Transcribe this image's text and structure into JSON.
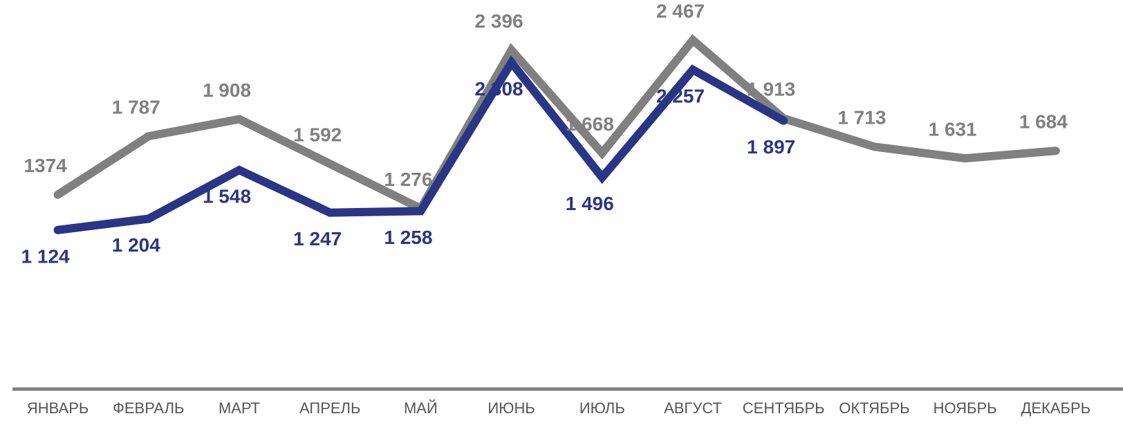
{
  "chart_data": {
    "type": "line",
    "categories": [
      "ЯНВАРЬ",
      "ФЕВРАЛЬ",
      "МАРТ",
      "АПРЕЛЬ",
      "МАЙ",
      "ИЮНЬ",
      "ИЮЛЬ",
      "АВГУСТ",
      "СЕНТЯБРЬ",
      "ОКТЯБРЬ",
      "НОЯБРЬ",
      "ДЕКАБРЬ"
    ],
    "series": [
      {
        "color": "#808080",
        "values": [
          1374,
          1787,
          1908,
          1592,
          1276,
          2396,
          1668,
          2467,
          1913,
          1713,
          1631,
          1684
        ],
        "value_labels": [
          "1374",
          "1 787",
          "1 908",
          "1 592",
          "1 276",
          "2 396",
          "1 668",
          "2 467",
          "1 913",
          "1 713",
          "1 631",
          "1 684"
        ]
      },
      {
        "color": "#2b3585",
        "values": [
          1124,
          1204,
          1548,
          1247,
          1258,
          2308,
          1496,
          2257,
          1897,
          null,
          null,
          null
        ],
        "value_labels": [
          "1 124",
          "1 204",
          "1 548",
          "1 247",
          "1 258",
          "2 308",
          "1 496",
          "2 257",
          "1 897",
          null,
          null,
          null
        ]
      }
    ],
    "ylim": [
      0,
      2750
    ]
  }
}
